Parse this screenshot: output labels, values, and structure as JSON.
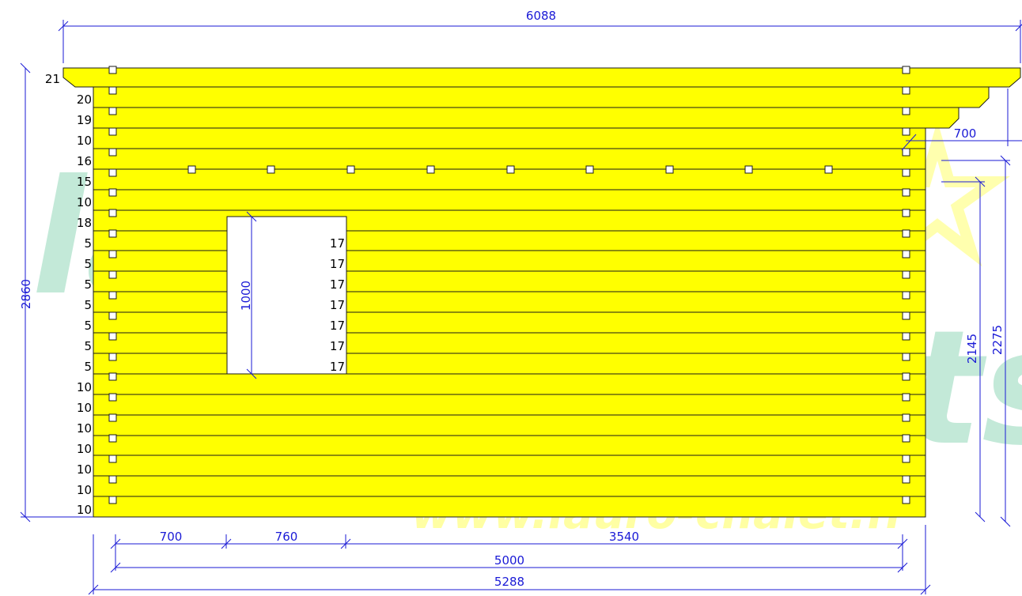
{
  "colors": {
    "wall_fill": "#ffff00",
    "log_line": "#1a1a1a",
    "dimension": "#1a1ad6",
    "watermark_green": "#b9e6d2",
    "watermark_yellow": "#ffff9a"
  },
  "watermark": {
    "word1": "lauro",
    "word2": "ch",
    "word3": "ets",
    "url": "www.lauro-chalet.fr"
  },
  "wall": {
    "course_labels": [
      "21",
      "20",
      "19",
      "10",
      "16",
      "15",
      "10",
      "18",
      "5",
      "5",
      "5",
      "5",
      "5",
      "5",
      "5",
      "10",
      "10",
      "10",
      "10",
      "10",
      "10",
      "10"
    ],
    "window_course_labels": [
      "17",
      "17",
      "17",
      "17",
      "17",
      "17",
      "17"
    ]
  },
  "dimensions": {
    "roof_width": "6088",
    "overhang": "700",
    "total_height": "2860",
    "window_height": "1000",
    "right_height_inner": "2145",
    "right_height_outer": "2275",
    "window_offset": "700",
    "window_width": "760",
    "remaining_width": "3540",
    "wall_length_inner": "5000",
    "wall_length_outer": "5288"
  }
}
